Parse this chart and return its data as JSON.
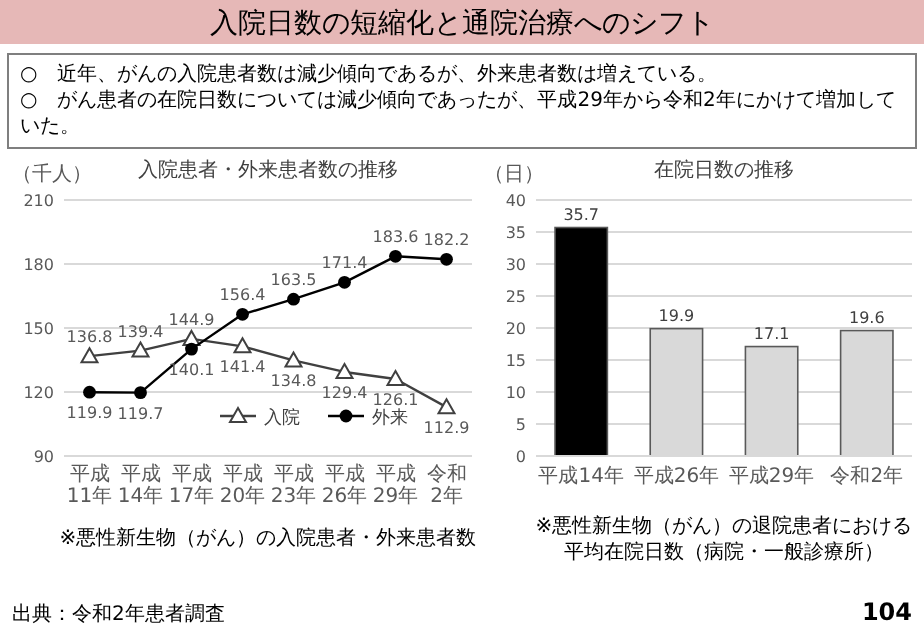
{
  "chart_data": [
    {
      "type": "other",
      "title": "入院日数の短縮化と通院治療へのシフト",
      "annotations": [
        "○　近年、がんの入院患者数は減少傾向であるが、外来患者数は増えている。",
        "○　がん患者の在院日数については減少傾向であったが、平成29年から令和2年にかけて増加していた。"
      ]
    },
    {
      "type": "line",
      "title": "入院患者・外来患者数の推移",
      "ylabel": "（千人）",
      "categories": [
        "平成11年",
        "平成14年",
        "平成17年",
        "平成20年",
        "平成23年",
        "平成26年",
        "平成29年",
        "令和2年"
      ],
      "series": [
        {
          "name": "入院",
          "color": "#404040",
          "marker": "triangle",
          "values": [
            136.8,
            139.4,
            144.9,
            141.4,
            134.8,
            129.4,
            126.1,
            112.9
          ]
        },
        {
          "name": "外来",
          "color": "#000000",
          "marker": "circle",
          "values": [
            119.9,
            119.7,
            140.1,
            156.4,
            163.5,
            171.4,
            183.6,
            182.2
          ]
        }
      ],
      "ylim": [
        90,
        210
      ],
      "yticks": [
        90,
        120,
        150,
        180,
        210
      ],
      "grid": "y",
      "legend": "bottom right",
      "data_labels": true,
      "annotations": [
        "※悪性新生物（がん）の入院患者・外来患者数"
      ]
    },
    {
      "type": "bar",
      "title": "在院日数の推移",
      "ylabel": "（日）",
      "categories": [
        "平成14年",
        "平成26年",
        "平成29年",
        "令和2年"
      ],
      "values": [
        35.7,
        19.9,
        17.1,
        19.6
      ],
      "colors": [
        "#000000",
        "#d9d9d9",
        "#d9d9d9",
        "#d9d9d9"
      ],
      "ylim": [
        0,
        40
      ],
      "yticks": [
        0,
        5,
        10,
        15,
        20,
        25,
        30,
        35,
        40
      ],
      "grid": "y",
      "data_labels": true,
      "annotations": [
        "※悪性新生物（がん）の退院患者における平均在院日数（病院・一般診療所）"
      ]
    },
    {
      "type": "other",
      "annotations": [
        "出典：令和2年患者調査",
        "104"
      ]
    }
  ]
}
